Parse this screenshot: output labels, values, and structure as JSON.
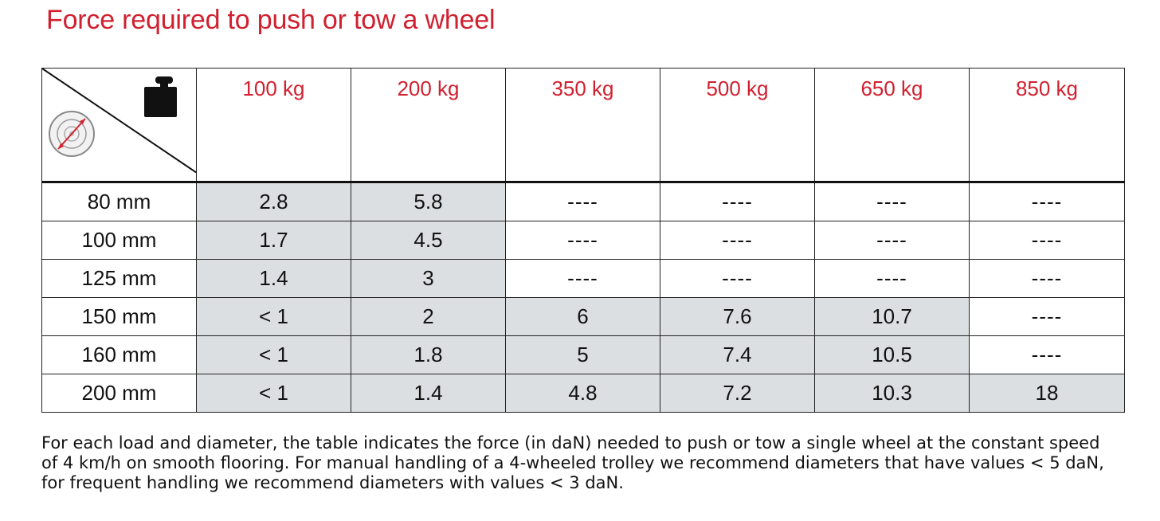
{
  "title": "Force required to push or tow a wheel",
  "table": {
    "load_headers": [
      "100 kg",
      "200 kg",
      "350 kg",
      "500 kg",
      "650 kg",
      "850 kg"
    ],
    "rows": [
      {
        "diameter": "80 mm",
        "values": [
          "2.8",
          "5.8",
          "----",
          "----",
          "----",
          "----"
        ],
        "shaded": [
          true,
          true,
          false,
          false,
          false,
          false
        ]
      },
      {
        "diameter": "100 mm",
        "values": [
          "1.7",
          "4.5",
          "----",
          "----",
          "----",
          "----"
        ],
        "shaded": [
          true,
          true,
          false,
          false,
          false,
          false
        ]
      },
      {
        "diameter": "125 mm",
        "values": [
          "1.4",
          "3",
          "----",
          "----",
          "----",
          "----"
        ],
        "shaded": [
          true,
          true,
          false,
          false,
          false,
          false
        ]
      },
      {
        "diameter": "150 mm",
        "values": [
          "< 1",
          "2",
          "6",
          "7.6",
          "10.7",
          "----"
        ],
        "shaded": [
          true,
          true,
          true,
          true,
          true,
          false
        ]
      },
      {
        "diameter": "160 mm",
        "values": [
          "< 1",
          "1.8",
          "5",
          "7.4",
          "10.5",
          "----"
        ],
        "shaded": [
          true,
          true,
          true,
          true,
          true,
          false
        ]
      },
      {
        "diameter": "200 mm",
        "values": [
          "< 1",
          "1.4",
          "4.8",
          "7.2",
          "10.3",
          "18"
        ],
        "shaded": [
          true,
          true,
          true,
          true,
          true,
          true
        ]
      }
    ]
  },
  "corner_icons": {
    "top_right": "weight-icon",
    "bottom_left": "wheel-diameter-icon"
  },
  "colors": {
    "accent": "#d1202f",
    "shaded_cell": "#dcdfe1"
  },
  "note_lines": [
    "For each load and diameter, the table indicates the force (in daN) needed to push or tow a single wheel at the constant speed",
    "of 4 km/h on smooth flooring. For manual handling of a 4-wheeled trolley we recommend diameters that have values < 5 daN,",
    "for frequent handling we recommend diameters with values < 3 daN."
  ]
}
